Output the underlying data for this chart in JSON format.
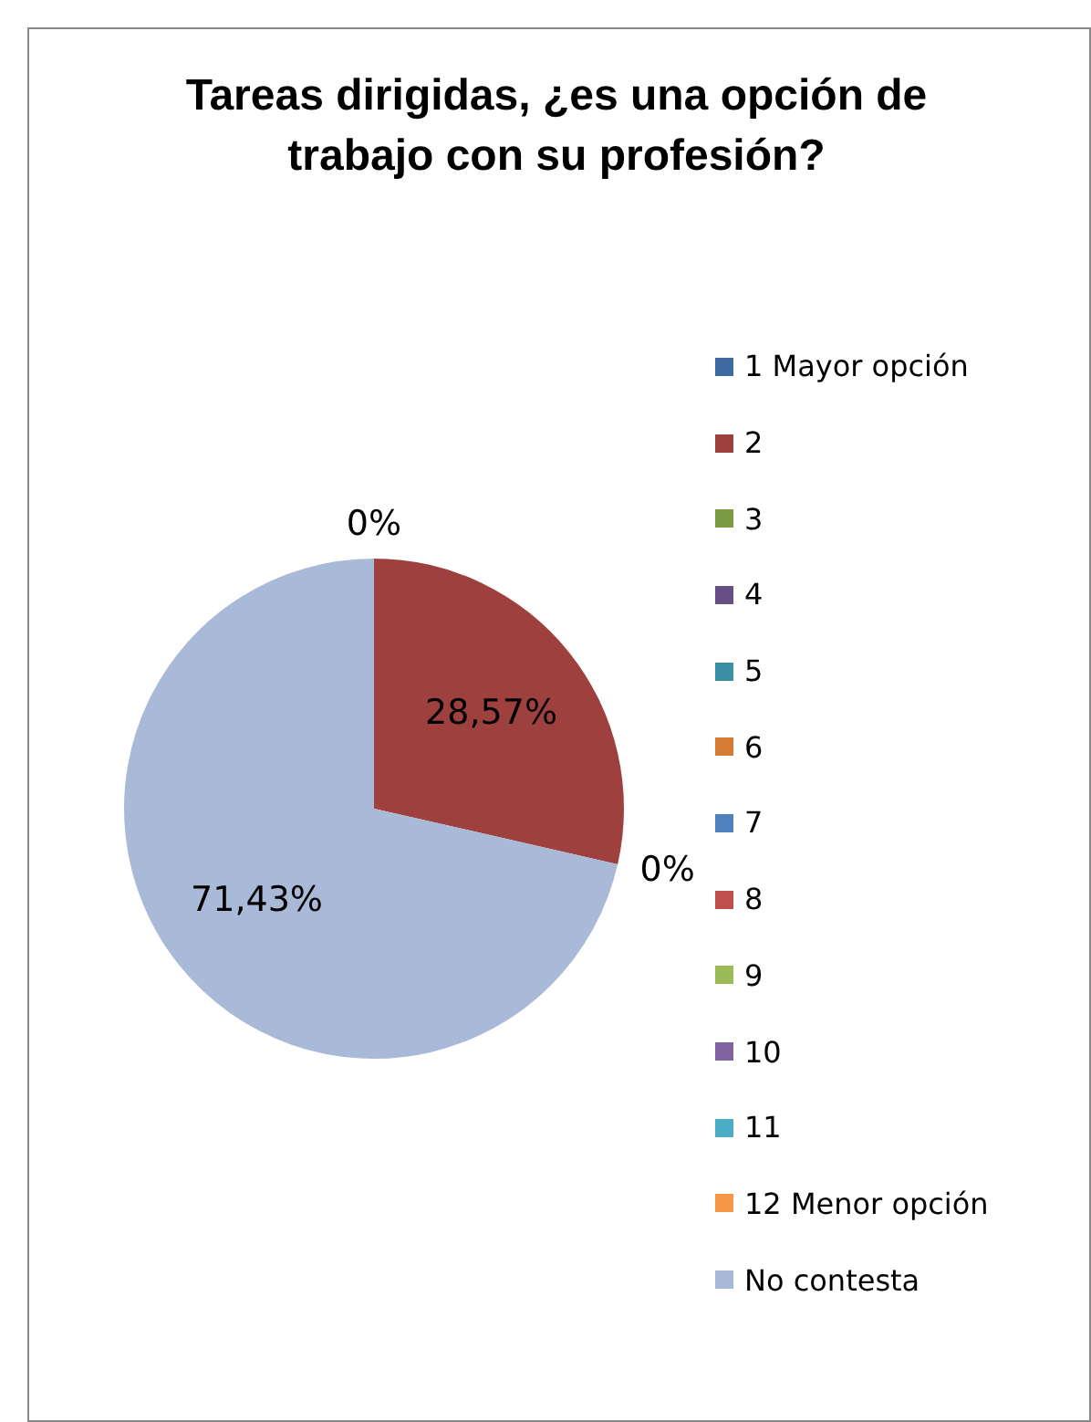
{
  "chart_data": {
    "type": "pie",
    "title": "Tareas dirigidas, ¿es una opción de trabajo con su profesión?",
    "categories": [
      "1 Mayor opción",
      "2",
      "3",
      "4",
      "5",
      "6",
      "7",
      "8",
      "9",
      "10",
      "11",
      "12 Menor opción",
      "No contesta"
    ],
    "values": [
      0,
      28.57,
      0,
      0,
      0,
      0,
      0,
      0,
      0,
      0,
      0,
      0,
      71.43
    ],
    "colors": [
      "#3d6aa0",
      "#9e413e",
      "#7b9a42",
      "#674f85",
      "#3b8fa3",
      "#d47c34",
      "#4f81bd",
      "#c0504d",
      "#9bbb59",
      "#8064a2",
      "#4bacc6",
      "#f79646",
      "#a9b9d8"
    ],
    "value_labels": [
      "0%",
      "28,57%",
      "0%",
      null,
      null,
      null,
      null,
      null,
      null,
      null,
      null,
      null,
      "71,43%"
    ],
    "legend": "right"
  }
}
